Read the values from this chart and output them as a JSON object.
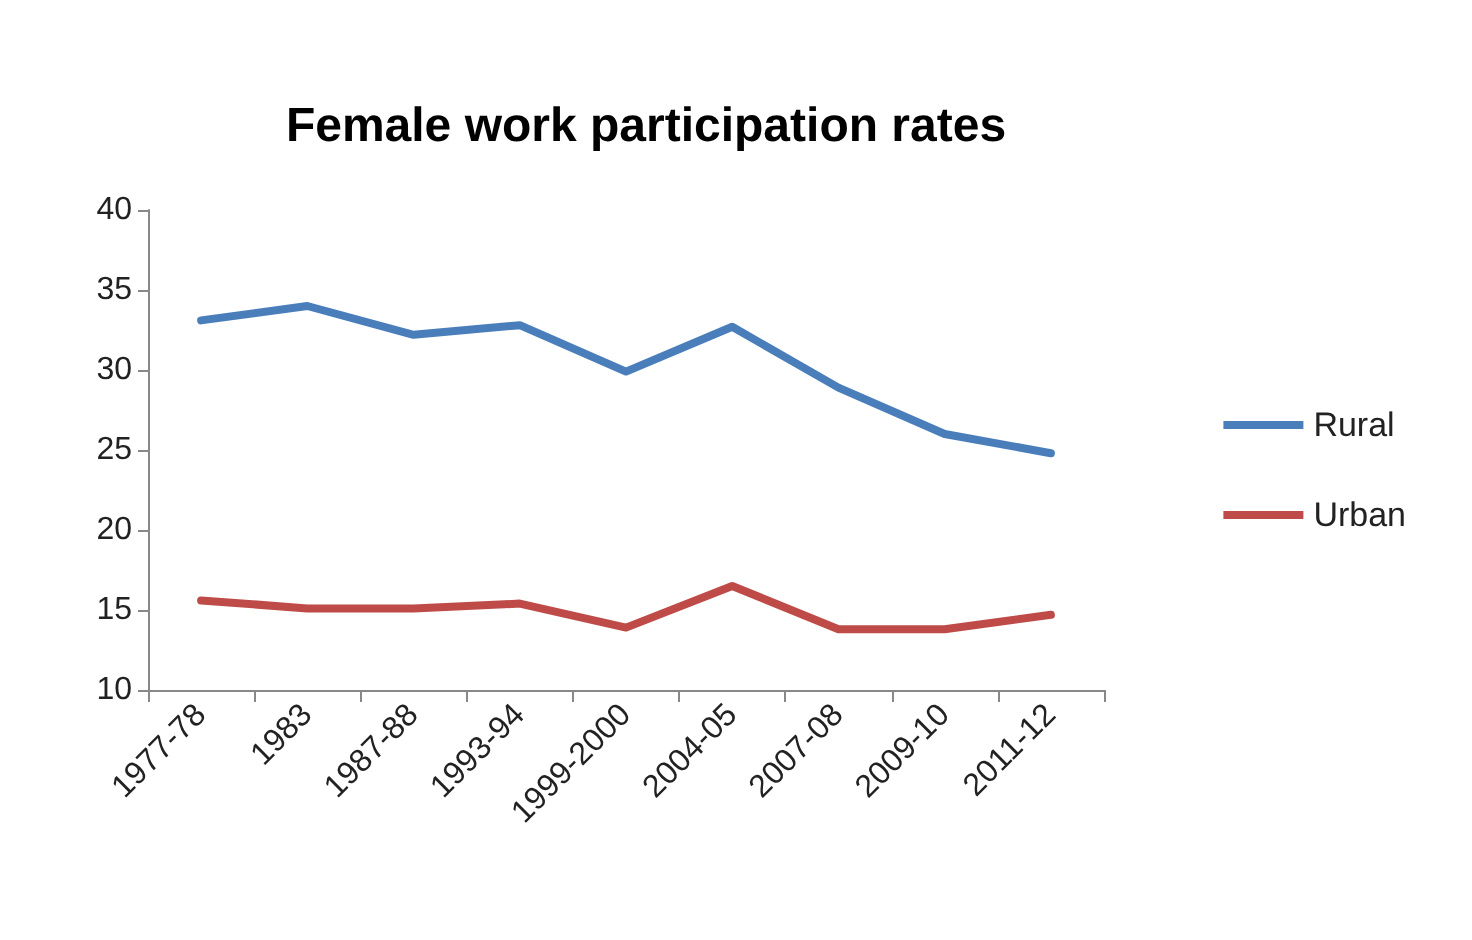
{
  "chart_data": {
    "type": "line",
    "title": "Female work participation rates",
    "categories": [
      "1977-78",
      "1983",
      "1987-88",
      "1993-94",
      "1999-2000",
      "2004-05",
      "2007-08",
      "2009-10",
      "2011-12"
    ],
    "series": [
      {
        "name": "Rural",
        "color": "#4a7ebb",
        "values": [
          33.1,
          34.0,
          32.2,
          32.8,
          29.9,
          32.7,
          28.9,
          26.0,
          24.8
        ]
      },
      {
        "name": "Urban",
        "color": "#be4b48",
        "values": [
          15.6,
          15.1,
          15.1,
          15.4,
          13.9,
          16.5,
          13.8,
          13.8,
          14.7
        ]
      }
    ],
    "ylim": [
      10,
      40
    ],
    "yticks": [
      10,
      15,
      20,
      25,
      30,
      35,
      40
    ],
    "grid": false,
    "legend": "right",
    "marker": "none",
    "line_style": "solid"
  }
}
